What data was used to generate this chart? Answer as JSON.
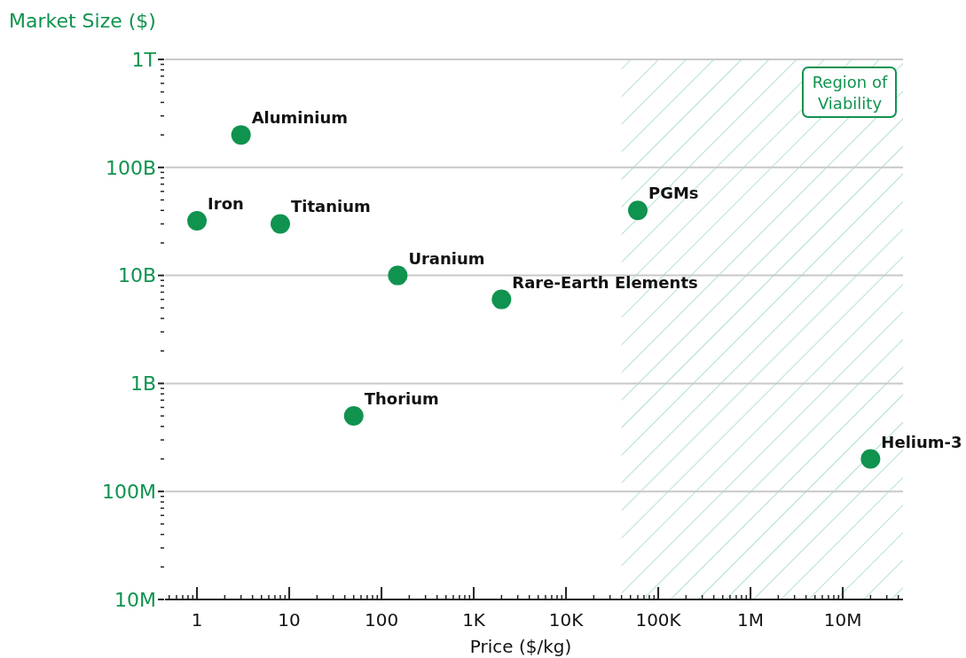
{
  "chart_data": {
    "type": "scatter",
    "xlabel": "Price ($/kg)",
    "ylabel": "Market Size ($)",
    "log": "xy",
    "grid": "y",
    "marker": "circle",
    "xlim": [
      0.45,
      45000000
    ],
    "ylim": [
      10000000,
      1000000000000
    ],
    "xticks": [
      {
        "value": 0.5,
        "label": null
      },
      {
        "value": 0.6,
        "label": null
      },
      {
        "value": 0.7,
        "label": null
      },
      {
        "value": 0.8,
        "label": null
      },
      {
        "value": 0.9,
        "label": null
      },
      {
        "value": 1,
        "label": "1"
      },
      {
        "value": 2,
        "label": null
      },
      {
        "value": 3,
        "label": null
      },
      {
        "value": 4,
        "label": null
      },
      {
        "value": 5,
        "label": null
      },
      {
        "value": 6,
        "label": null
      },
      {
        "value": 7,
        "label": null
      },
      {
        "value": 8,
        "label": null
      },
      {
        "value": 9,
        "label": null
      },
      {
        "value": 10,
        "label": "10"
      },
      {
        "value": 20,
        "label": null
      },
      {
        "value": 30,
        "label": null
      },
      {
        "value": 40,
        "label": null
      },
      {
        "value": 50,
        "label": null
      },
      {
        "value": 60,
        "label": null
      },
      {
        "value": 70,
        "label": null
      },
      {
        "value": 80,
        "label": null
      },
      {
        "value": 90,
        "label": null
      },
      {
        "value": 100,
        "label": "100"
      },
      {
        "value": 200,
        "label": null
      },
      {
        "value": 300,
        "label": null
      },
      {
        "value": 400,
        "label": null
      },
      {
        "value": 500,
        "label": null
      },
      {
        "value": 600,
        "label": null
      },
      {
        "value": 700,
        "label": null
      },
      {
        "value": 800,
        "label": null
      },
      {
        "value": 900,
        "label": null
      },
      {
        "value": 1000,
        "label": "1K"
      },
      {
        "value": 2000,
        "label": null
      },
      {
        "value": 3000,
        "label": null
      },
      {
        "value": 4000,
        "label": null
      },
      {
        "value": 5000,
        "label": null
      },
      {
        "value": 6000,
        "label": null
      },
      {
        "value": 7000,
        "label": null
      },
      {
        "value": 8000,
        "label": null
      },
      {
        "value": 9000,
        "label": null
      },
      {
        "value": 10000,
        "label": "10K"
      },
      {
        "value": 20000,
        "label": null
      },
      {
        "value": 30000,
        "label": null
      },
      {
        "value": 40000,
        "label": null
      },
      {
        "value": 50000,
        "label": null
      },
      {
        "value": 60000,
        "label": null
      },
      {
        "value": 70000,
        "label": null
      },
      {
        "value": 80000,
        "label": null
      },
      {
        "value": 90000,
        "label": null
      },
      {
        "value": 100000,
        "label": "100K"
      },
      {
        "value": 200000,
        "label": null
      },
      {
        "value": 300000,
        "label": null
      },
      {
        "value": 400000,
        "label": null
      },
      {
        "value": 500000,
        "label": null
      },
      {
        "value": 600000,
        "label": null
      },
      {
        "value": 700000,
        "label": null
      },
      {
        "value": 800000,
        "label": null
      },
      {
        "value": 900000,
        "label": null
      },
      {
        "value": 1000000,
        "label": "1M"
      },
      {
        "value": 2000000,
        "label": null
      },
      {
        "value": 3000000,
        "label": null
      },
      {
        "value": 4000000,
        "label": null
      },
      {
        "value": 5000000,
        "label": null
      },
      {
        "value": 6000000,
        "label": null
      },
      {
        "value": 7000000,
        "label": null
      },
      {
        "value": 8000000,
        "label": null
      },
      {
        "value": 9000000,
        "label": null
      },
      {
        "value": 10000000,
        "label": "10M"
      },
      {
        "value": 20000000,
        "label": null
      },
      {
        "value": 30000000,
        "label": null
      },
      {
        "value": 40000000,
        "label": null
      }
    ],
    "yticks": [
      {
        "value": 10000000,
        "label": "10M"
      },
      {
        "value": 20000000,
        "label": null
      },
      {
        "value": 30000000,
        "label": null
      },
      {
        "value": 40000000,
        "label": null
      },
      {
        "value": 50000000,
        "label": null
      },
      {
        "value": 60000000,
        "label": null
      },
      {
        "value": 70000000,
        "label": null
      },
      {
        "value": 80000000,
        "label": null
      },
      {
        "value": 90000000,
        "label": null
      },
      {
        "value": 100000000,
        "label": "100M"
      },
      {
        "value": 200000000,
        "label": null
      },
      {
        "value": 300000000,
        "label": null
      },
      {
        "value": 400000000,
        "label": null
      },
      {
        "value": 500000000,
        "label": null
      },
      {
        "value": 600000000,
        "label": null
      },
      {
        "value": 700000000,
        "label": null
      },
      {
        "value": 800000000,
        "label": null
      },
      {
        "value": 900000000,
        "label": null
      },
      {
        "value": 1000000000,
        "label": "1B"
      },
      {
        "value": 2000000000,
        "label": null
      },
      {
        "value": 3000000000,
        "label": null
      },
      {
        "value": 4000000000,
        "label": null
      },
      {
        "value": 5000000000,
        "label": null
      },
      {
        "value": 6000000000,
        "label": null
      },
      {
        "value": 7000000000,
        "label": null
      },
      {
        "value": 8000000000,
        "label": null
      },
      {
        "value": 9000000000,
        "label": null
      },
      {
        "value": 10000000000,
        "label": "10B"
      },
      {
        "value": 20000000000,
        "label": null
      },
      {
        "value": 30000000000,
        "label": null
      },
      {
        "value": 40000000000,
        "label": null
      },
      {
        "value": 50000000000,
        "label": null
      },
      {
        "value": 60000000000,
        "label": null
      },
      {
        "value": 70000000000,
        "label": null
      },
      {
        "value": 80000000000,
        "label": null
      },
      {
        "value": 90000000000,
        "label": null
      },
      {
        "value": 100000000000,
        "label": "100B"
      },
      {
        "value": 200000000000,
        "label": null
      },
      {
        "value": 300000000000,
        "label": null
      },
      {
        "value": 400000000000,
        "label": null
      },
      {
        "value": 500000000000,
        "label": null
      },
      {
        "value": 600000000000,
        "label": null
      },
      {
        "value": 700000000000,
        "label": null
      },
      {
        "value": 800000000000,
        "label": null
      },
      {
        "value": 900000000000,
        "label": null
      },
      {
        "value": 1000000000000,
        "label": "1T"
      }
    ],
    "series": [
      {
        "color": "#10934f",
        "x": [
          3,
          1,
          8,
          150,
          2000,
          60000,
          50,
          20000000
        ],
        "values": [
          200000000000,
          32000000000,
          30000000000,
          10000000000,
          6000000000,
          40000000000,
          500000000,
          200000000
        ]
      }
    ],
    "annotations": [
      {
        "text": "Aluminium",
        "x": 3,
        "y": 200000000000
      },
      {
        "text": "Iron",
        "x": 1,
        "y": 32000000000
      },
      {
        "text": "Titanium",
        "x": 8,
        "y": 30000000000
      },
      {
        "text": "Uranium",
        "x": 150,
        "y": 10000000000
      },
      {
        "text": "Rare-Earth Elements",
        "x": 2000,
        "y": 6000000000
      },
      {
        "text": "PGMs",
        "x": 60000,
        "y": 40000000000
      },
      {
        "text": "Thorium",
        "x": 50,
        "y": 500000000
      },
      {
        "text": "Helium-3",
        "x": 20000000,
        "y": 200000000
      }
    ],
    "bands": [
      {
        "axis": "x",
        "from": 40000,
        "to": 45000000,
        "label": "Region of Viability",
        "color": "#b3e2c8"
      }
    ]
  }
}
